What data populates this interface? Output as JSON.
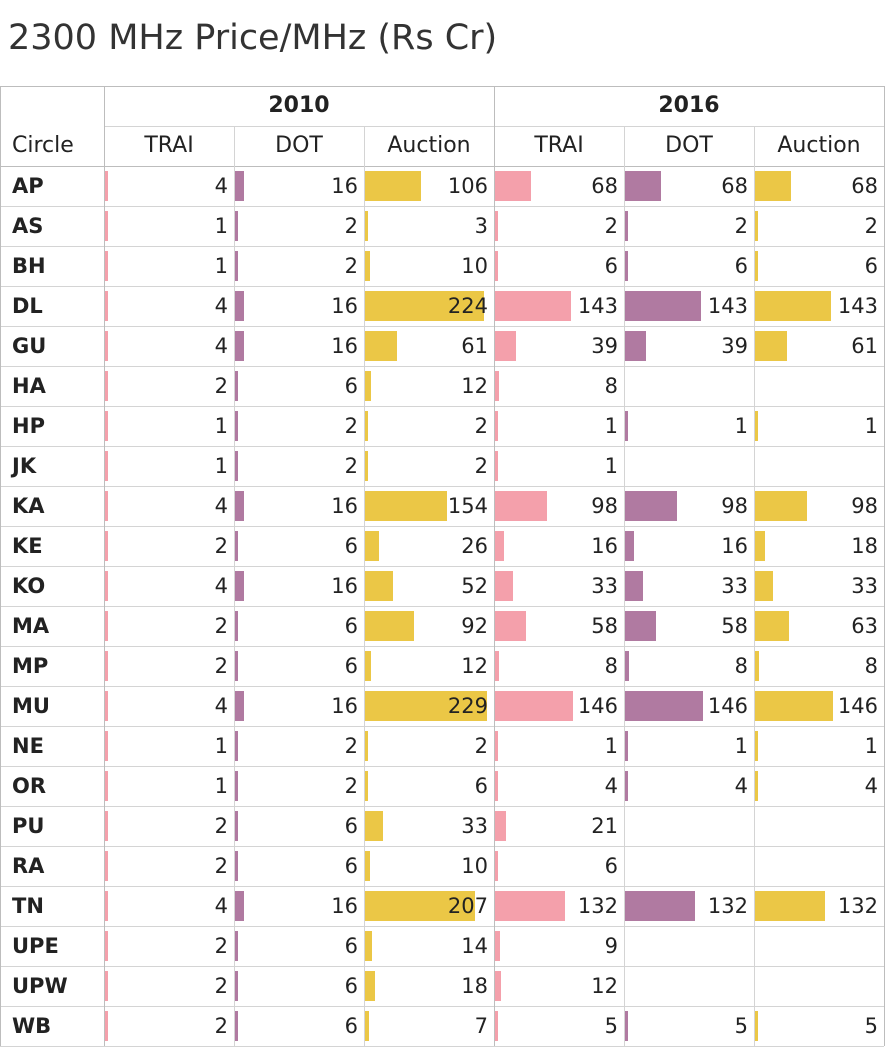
{
  "title": "2300 MHz Price/MHz (Rs Cr)",
  "chart_data": {
    "type": "table",
    "row_header": "Circle",
    "years": [
      "2010",
      "2016"
    ],
    "columns": [
      "TRAI",
      "DOT",
      "Auction"
    ],
    "colors": {
      "TRAI": "#f4a0ab",
      "DOT": "#b07aa1",
      "Auction": "#ebc746"
    },
    "rows": [
      {
        "circle": "AP",
        "y2010": [
          4,
          16,
          106
        ],
        "y2016": [
          68,
          68,
          68
        ]
      },
      {
        "circle": "AS",
        "y2010": [
          1,
          2,
          3
        ],
        "y2016": [
          2,
          2,
          2
        ]
      },
      {
        "circle": "BH",
        "y2010": [
          1,
          2,
          10
        ],
        "y2016": [
          6,
          6,
          6
        ]
      },
      {
        "circle": "DL",
        "y2010": [
          4,
          16,
          224
        ],
        "y2016": [
          143,
          143,
          143
        ]
      },
      {
        "circle": "GU",
        "y2010": [
          4,
          16,
          61
        ],
        "y2016": [
          39,
          39,
          61
        ]
      },
      {
        "circle": "HA",
        "y2010": [
          2,
          6,
          12
        ],
        "y2016": [
          8,
          null,
          null
        ]
      },
      {
        "circle": "HP",
        "y2010": [
          1,
          2,
          2
        ],
        "y2016": [
          1,
          1,
          1
        ]
      },
      {
        "circle": "JK",
        "y2010": [
          1,
          2,
          2
        ],
        "y2016": [
          1,
          null,
          null
        ]
      },
      {
        "circle": "KA",
        "y2010": [
          4,
          16,
          154
        ],
        "y2016": [
          98,
          98,
          98
        ]
      },
      {
        "circle": "KE",
        "y2010": [
          2,
          6,
          26
        ],
        "y2016": [
          16,
          16,
          18
        ]
      },
      {
        "circle": "KO",
        "y2010": [
          4,
          16,
          52
        ],
        "y2016": [
          33,
          33,
          33
        ]
      },
      {
        "circle": "MA",
        "y2010": [
          2,
          6,
          92
        ],
        "y2016": [
          58,
          58,
          63
        ]
      },
      {
        "circle": "MP",
        "y2010": [
          2,
          6,
          12
        ],
        "y2016": [
          8,
          8,
          8
        ]
      },
      {
        "circle": "MU",
        "y2010": [
          4,
          16,
          229
        ],
        "y2016": [
          146,
          146,
          146
        ]
      },
      {
        "circle": "NE",
        "y2010": [
          1,
          2,
          2
        ],
        "y2016": [
          1,
          1,
          1
        ]
      },
      {
        "circle": "OR",
        "y2010": [
          1,
          2,
          6
        ],
        "y2016": [
          4,
          4,
          4
        ]
      },
      {
        "circle": "PU",
        "y2010": [
          2,
          6,
          33
        ],
        "y2016": [
          21,
          null,
          null
        ]
      },
      {
        "circle": "RA",
        "y2010": [
          2,
          6,
          10
        ],
        "y2016": [
          6,
          null,
          null
        ]
      },
      {
        "circle": "TN",
        "y2010": [
          4,
          16,
          207
        ],
        "y2016": [
          132,
          132,
          132
        ]
      },
      {
        "circle": "UPE",
        "y2010": [
          2,
          6,
          14
        ],
        "y2016": [
          9,
          null,
          null
        ]
      },
      {
        "circle": "UPW",
        "y2010": [
          2,
          6,
          18
        ],
        "y2016": [
          12,
          null,
          null
        ]
      },
      {
        "circle": "WB",
        "y2010": [
          2,
          6,
          7
        ],
        "y2016": [
          5,
          5,
          5
        ]
      }
    ]
  }
}
